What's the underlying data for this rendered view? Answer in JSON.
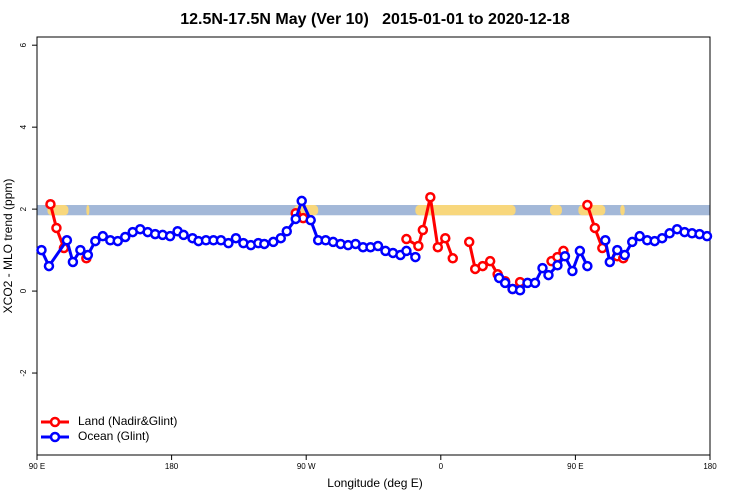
{
  "chart_data": {
    "type": "line",
    "title": "12.5N-17.5N May (Ver 10)   2015-01-01 to 2020-12-18",
    "x_label": "Longitude (deg E)",
    "y_label": "XCO2 - MLO trend (ppm)",
    "xlim": [
      90,
      540
    ],
    "xticks": [
      {
        "value": 90,
        "label": "90 E"
      },
      180,
      {
        "value": 270,
        "label": "90 W"
      },
      {
        "value": 360,
        "label": "0"
      },
      {
        "value": 450,
        "label": "90 E"
      },
      {
        "value": 540,
        "label": "180"
      }
    ],
    "ylim": [
      -4,
      6.2
    ],
    "yticks": [
      -2,
      0,
      2,
      4,
      6
    ],
    "legend": "bottom-left",
    "surface_band": {
      "ylim": [
        1.85,
        2.1
      ],
      "color": "#a3b8d8",
      "land_color": "#f8d77c",
      "land_ranges": [
        [
          97,
          111
        ],
        [
          123,
          125
        ],
        [
          262,
          278
        ],
        [
          343,
          410
        ],
        [
          433,
          441
        ],
        [
          452,
          470
        ],
        [
          480,
          483
        ]
      ]
    },
    "series": [
      {
        "name": "Land (Nadir&Glint)",
        "color": "#ff0000",
        "x": [
          99,
          103,
          108,
          null,
          123,
          null,
          263,
          268,
          null,
          337,
          345,
          348,
          353,
          358,
          363,
          368,
          null,
          379,
          383,
          388,
          393,
          398,
          403,
          408,
          413,
          null,
          434,
          438,
          442,
          null,
          458,
          463,
          468,
          null,
          478,
          482
        ],
        "values": [
          2.12,
          1.54,
          1.05,
          null,
          0.8,
          null,
          1.9,
          1.78,
          null,
          1.27,
          1.1,
          1.49,
          2.29,
          1.07,
          1.29,
          0.8,
          null,
          1.2,
          0.54,
          0.61,
          0.73,
          0.41,
          0.24,
          0.05,
          0.22,
          null,
          0.73,
          0.83,
          0.98,
          null,
          2.1,
          1.54,
          1.05,
          null,
          0.85,
          0.8
        ]
      },
      {
        "name": "Ocean (Glint)",
        "color": "#0000ff",
        "x": [
          93,
          98,
          110,
          114,
          119,
          124,
          129,
          134,
          139,
          144,
          149,
          154,
          159,
          164,
          169,
          174,
          179,
          184,
          188,
          194,
          198,
          203,
          208,
          213,
          218,
          223,
          228,
          233,
          238,
          242,
          248,
          253,
          257,
          263,
          267,
          273,
          278,
          283,
          288,
          293,
          298,
          303,
          308,
          313,
          318,
          323,
          328,
          333,
          337,
          343,
          null,
          399,
          403,
          408,
          413,
          418,
          423,
          428,
          432,
          438,
          443,
          448,
          453,
          458,
          null,
          470,
          473,
          478,
          483,
          488,
          493,
          498,
          503,
          508,
          513,
          518,
          523,
          528,
          533,
          538
        ],
        "values": [
          1.0,
          0.61,
          1.24,
          0.71,
          1.0,
          0.88,
          1.22,
          1.34,
          1.24,
          1.22,
          1.32,
          1.44,
          1.51,
          1.44,
          1.39,
          1.37,
          1.34,
          1.46,
          1.37,
          1.29,
          1.22,
          1.24,
          1.24,
          1.24,
          1.17,
          1.29,
          1.17,
          1.12,
          1.17,
          1.15,
          1.2,
          1.29,
          1.46,
          1.76,
          2.2,
          1.73,
          1.24,
          1.24,
          1.2,
          1.15,
          1.12,
          1.15,
          1.07,
          1.07,
          1.1,
          0.98,
          0.93,
          0.88,
          0.98,
          0.83,
          null,
          0.32,
          0.2,
          0.05,
          0.02,
          0.2,
          0.2,
          0.56,
          0.39,
          0.63,
          0.85,
          0.49,
          0.98,
          0.61,
          null,
          1.24,
          0.71,
          1.0,
          0.88,
          1.2,
          1.34,
          1.24,
          1.22,
          1.29,
          1.41,
          1.51,
          1.44,
          1.41,
          1.39,
          1.34
        ]
      }
    ]
  }
}
